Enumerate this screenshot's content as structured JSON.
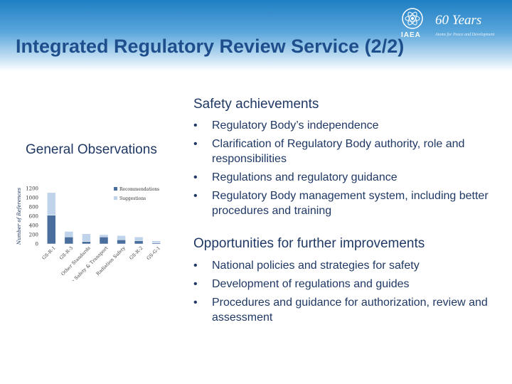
{
  "header": {
    "title": "Integrated Regulatory Review Service (2/2)",
    "logo": {
      "icon": "iaea-emblem-icon",
      "name": "IAEA",
      "years": "60 Years",
      "tagline": "Atoms for Peace and Development"
    },
    "colors": {
      "band_top": "#1f7fc4",
      "band_bottom": "#cfe5f5",
      "title": "#1f4e8c",
      "text": "#1f3864"
    }
  },
  "chart_data": {
    "type": "bar",
    "stacked": true,
    "title": "General Observations",
    "ylabel": "Number of References",
    "xlabel": "",
    "ylim": [
      0,
      1200
    ],
    "yticks": [
      0,
      200,
      400,
      600,
      800,
      1000,
      1200
    ],
    "categories": [
      "GS-R-1",
      "GS-R-3",
      "Other Standards",
      "Waste Safety & Transport",
      "Radiation Safety",
      "GS-R-2",
      "GS-G-1"
    ],
    "series": [
      {
        "name": "Recommendations",
        "color": "#4a6f9e",
        "values": [
          620,
          150,
          50,
          150,
          90,
          70,
          20
        ]
      },
      {
        "name": "Suggestions",
        "color": "#bfd3ea",
        "values": [
          490,
          120,
          170,
          50,
          90,
          80,
          45
        ]
      }
    ],
    "legend_position": "top-right",
    "grid": false
  },
  "achievements": {
    "heading": "Safety achievements",
    "items": [
      "Regulatory Body’s independence",
      "Clarification of Regulatory Body authority, role and responsibilities",
      "Regulations and regulatory guidance",
      "Regulatory Body management system, including better procedures and training"
    ]
  },
  "opportunities": {
    "heading": "Opportunities for further improvements",
    "items": [
      "National policies and strategies for safety",
      "Development of regulations and guides",
      "Procedures and guidance for authorization, review and assessment"
    ]
  }
}
